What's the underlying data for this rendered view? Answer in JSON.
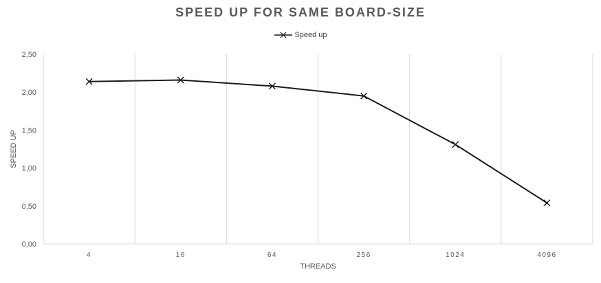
{
  "chart_data": {
    "type": "line",
    "title": "SPEED UP FOR SAME BOARD-SIZE",
    "xlabel": "THREADS",
    "ylabel": "SPEED UP",
    "categories": [
      "4",
      "16",
      "64",
      "256",
      "1024",
      "4096"
    ],
    "series": [
      {
        "name": "Speed up",
        "values": [
          2.14,
          2.16,
          2.08,
          1.95,
          1.31,
          0.54
        ],
        "color": "#1a1a1a",
        "marker": "x"
      }
    ],
    "ylim": [
      0,
      2.5
    ],
    "yticks": [
      "0,00",
      "0,50",
      "1,00",
      "1,50",
      "2,00",
      "2,50"
    ],
    "ytick_values": [
      0,
      0.5,
      1,
      1.5,
      2,
      2.5
    ],
    "grid": "vertical",
    "legend": "top-center",
    "colors": {
      "line": "#1a1a1a",
      "grid": "#d9d9d9",
      "axis_text": "#595959",
      "title": "#595959"
    }
  }
}
